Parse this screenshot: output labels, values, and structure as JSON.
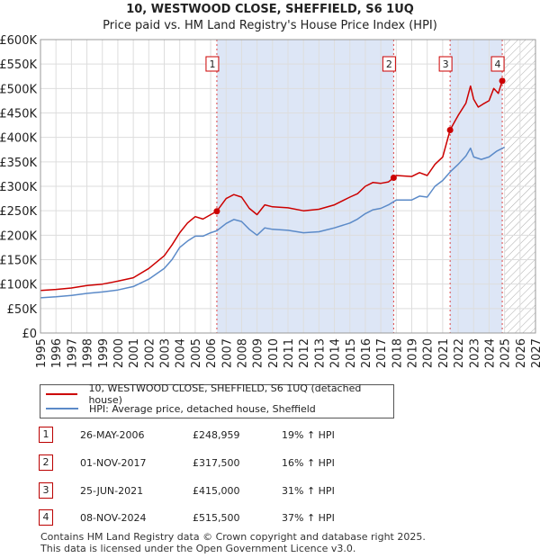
{
  "title": "10, WESTWOOD CLOSE, SHEFFIELD, S6 1UQ",
  "subtitle": "Price paid vs. HM Land Registry's House Price Index (HPI)",
  "legend": {
    "series1": "10, WESTWOOD CLOSE, SHEFFIELD, S6 1UQ (detached house)",
    "series2": "HPI: Average price, detached house, Sheffield"
  },
  "colors": {
    "property": "#cc0000",
    "hpi": "#5b8ac8",
    "shade": "#dde6f6",
    "marker_border": "#cc0000"
  },
  "sales": [
    {
      "num": "1",
      "date": "26-MAY-2006",
      "price": "£248,959",
      "hpi": "19% ↑ HPI"
    },
    {
      "num": "2",
      "date": "01-NOV-2017",
      "price": "£317,500",
      "hpi": "16% ↑ HPI"
    },
    {
      "num": "3",
      "date": "25-JUN-2021",
      "price": "£415,000",
      "hpi": "31% ↑ HPI"
    },
    {
      "num": "4",
      "date": "08-NOV-2024",
      "price": "£515,500",
      "hpi": "37% ↑ HPI"
    }
  ],
  "footer": {
    "line1": "Contains HM Land Registry data © Crown copyright and database right 2025.",
    "line2": "This data is licensed under the Open Government Licence v3.0."
  },
  "chart_data": {
    "type": "line",
    "title": "10, WESTWOOD CLOSE, SHEFFIELD, S6 1UQ",
    "xlim": [
      1995,
      2027
    ],
    "ylim": [
      0,
      600000
    ],
    "x_ticks": [
      "1995",
      "1996",
      "1997",
      "1998",
      "1999",
      "2000",
      "2001",
      "2002",
      "2003",
      "2004",
      "2005",
      "2006",
      "2007",
      "2008",
      "2009",
      "2010",
      "2011",
      "2012",
      "2013",
      "2014",
      "2015",
      "2016",
      "2017",
      "2018",
      "2019",
      "2020",
      "2021",
      "2022",
      "2023",
      "2024",
      "2025",
      "2026",
      "2027"
    ],
    "y_ticks": [
      {
        "value": 0,
        "label": "£0"
      },
      {
        "value": 50000,
        "label": "£50K"
      },
      {
        "value": 100000,
        "label": "£100K"
      },
      {
        "value": 150000,
        "label": "£150K"
      },
      {
        "value": 200000,
        "label": "£200K"
      },
      {
        "value": 250000,
        "label": "£250K"
      },
      {
        "value": 300000,
        "label": "£300K"
      },
      {
        "value": 350000,
        "label": "£350K"
      },
      {
        "value": 400000,
        "label": "£400K"
      },
      {
        "value": 450000,
        "label": "£450K"
      },
      {
        "value": 500000,
        "label": "£500K"
      },
      {
        "value": 550000,
        "label": "£550K"
      },
      {
        "value": 600000,
        "label": "£600K"
      }
    ],
    "shaded_ranges": [
      [
        2006.4,
        2017.83
      ],
      [
        2021.48,
        2024.85
      ]
    ],
    "hatched_from": 2025.0,
    "sale_markers": [
      {
        "label": "1",
        "x": 2006.4,
        "y": 248959
      },
      {
        "label": "2",
        "x": 2017.83,
        "y": 317500
      },
      {
        "label": "3",
        "x": 2021.48,
        "y": 415000
      },
      {
        "label": "4",
        "x": 2024.85,
        "y": 515500
      }
    ],
    "series": [
      {
        "name": "10, WESTWOOD CLOSE, SHEFFIELD, S6 1UQ (detached house)",
        "x": [
          1995,
          1996,
          1997,
          1998,
          1999,
          2000,
          2001,
          2002,
          2003,
          2003.5,
          2004,
          2004.5,
          2005,
          2005.5,
          2006,
          2006.4,
          2007,
          2007.5,
          2008,
          2008.5,
          2009,
          2009.5,
          2010,
          2011,
          2012,
          2013,
          2014,
          2015,
          2015.5,
          2016,
          2016.5,
          2017,
          2017.5,
          2017.83,
          2018,
          2019,
          2019.5,
          2020,
          2020.5,
          2021,
          2021.48,
          2021.7,
          2022,
          2022.5,
          2022.8,
          2023,
          2023.3,
          2023.6,
          2024,
          2024.3,
          2024.6,
          2024.85,
          2025
        ],
        "values": [
          87000,
          89000,
          92000,
          97000,
          100000,
          106000,
          113000,
          132000,
          158000,
          180000,
          205000,
          225000,
          238000,
          233000,
          242000,
          248959,
          275000,
          283000,
          278000,
          255000,
          242000,
          262000,
          258000,
          256000,
          250000,
          253000,
          262000,
          278000,
          285000,
          300000,
          308000,
          306000,
          309000,
          317500,
          322000,
          320000,
          328000,
          322000,
          345000,
          360000,
          415000,
          428000,
          445000,
          470000,
          505000,
          478000,
          462000,
          468000,
          475000,
          500000,
          490000,
          515500,
          520000
        ]
      },
      {
        "name": "HPI: Average price, detached house, Sheffield",
        "x": [
          1995,
          1996,
          1997,
          1998,
          1999,
          2000,
          2001,
          2002,
          2003,
          2003.5,
          2004,
          2004.5,
          2005,
          2005.5,
          2006,
          2006.4,
          2007,
          2007.5,
          2008,
          2008.5,
          2009,
          2009.5,
          2010,
          2011,
          2012,
          2013,
          2014,
          2015,
          2015.5,
          2016,
          2016.5,
          2017,
          2017.5,
          2018,
          2019,
          2019.5,
          2020,
          2020.5,
          2021,
          2021.5,
          2022,
          2022.5,
          2022.8,
          2023,
          2023.5,
          2024,
          2024.5,
          2025
        ],
        "values": [
          72000,
          74000,
          77000,
          81000,
          84000,
          88000,
          95000,
          110000,
          132000,
          150000,
          175000,
          188000,
          198000,
          198000,
          205000,
          209000,
          224000,
          232000,
          228000,
          212000,
          200000,
          215000,
          212000,
          210000,
          205000,
          207000,
          215000,
          225000,
          233000,
          244000,
          252000,
          255000,
          262000,
          272000,
          272000,
          280000,
          278000,
          300000,
          312000,
          330000,
          345000,
          362000,
          378000,
          360000,
          355000,
          360000,
          372000,
          380000
        ]
      }
    ]
  }
}
